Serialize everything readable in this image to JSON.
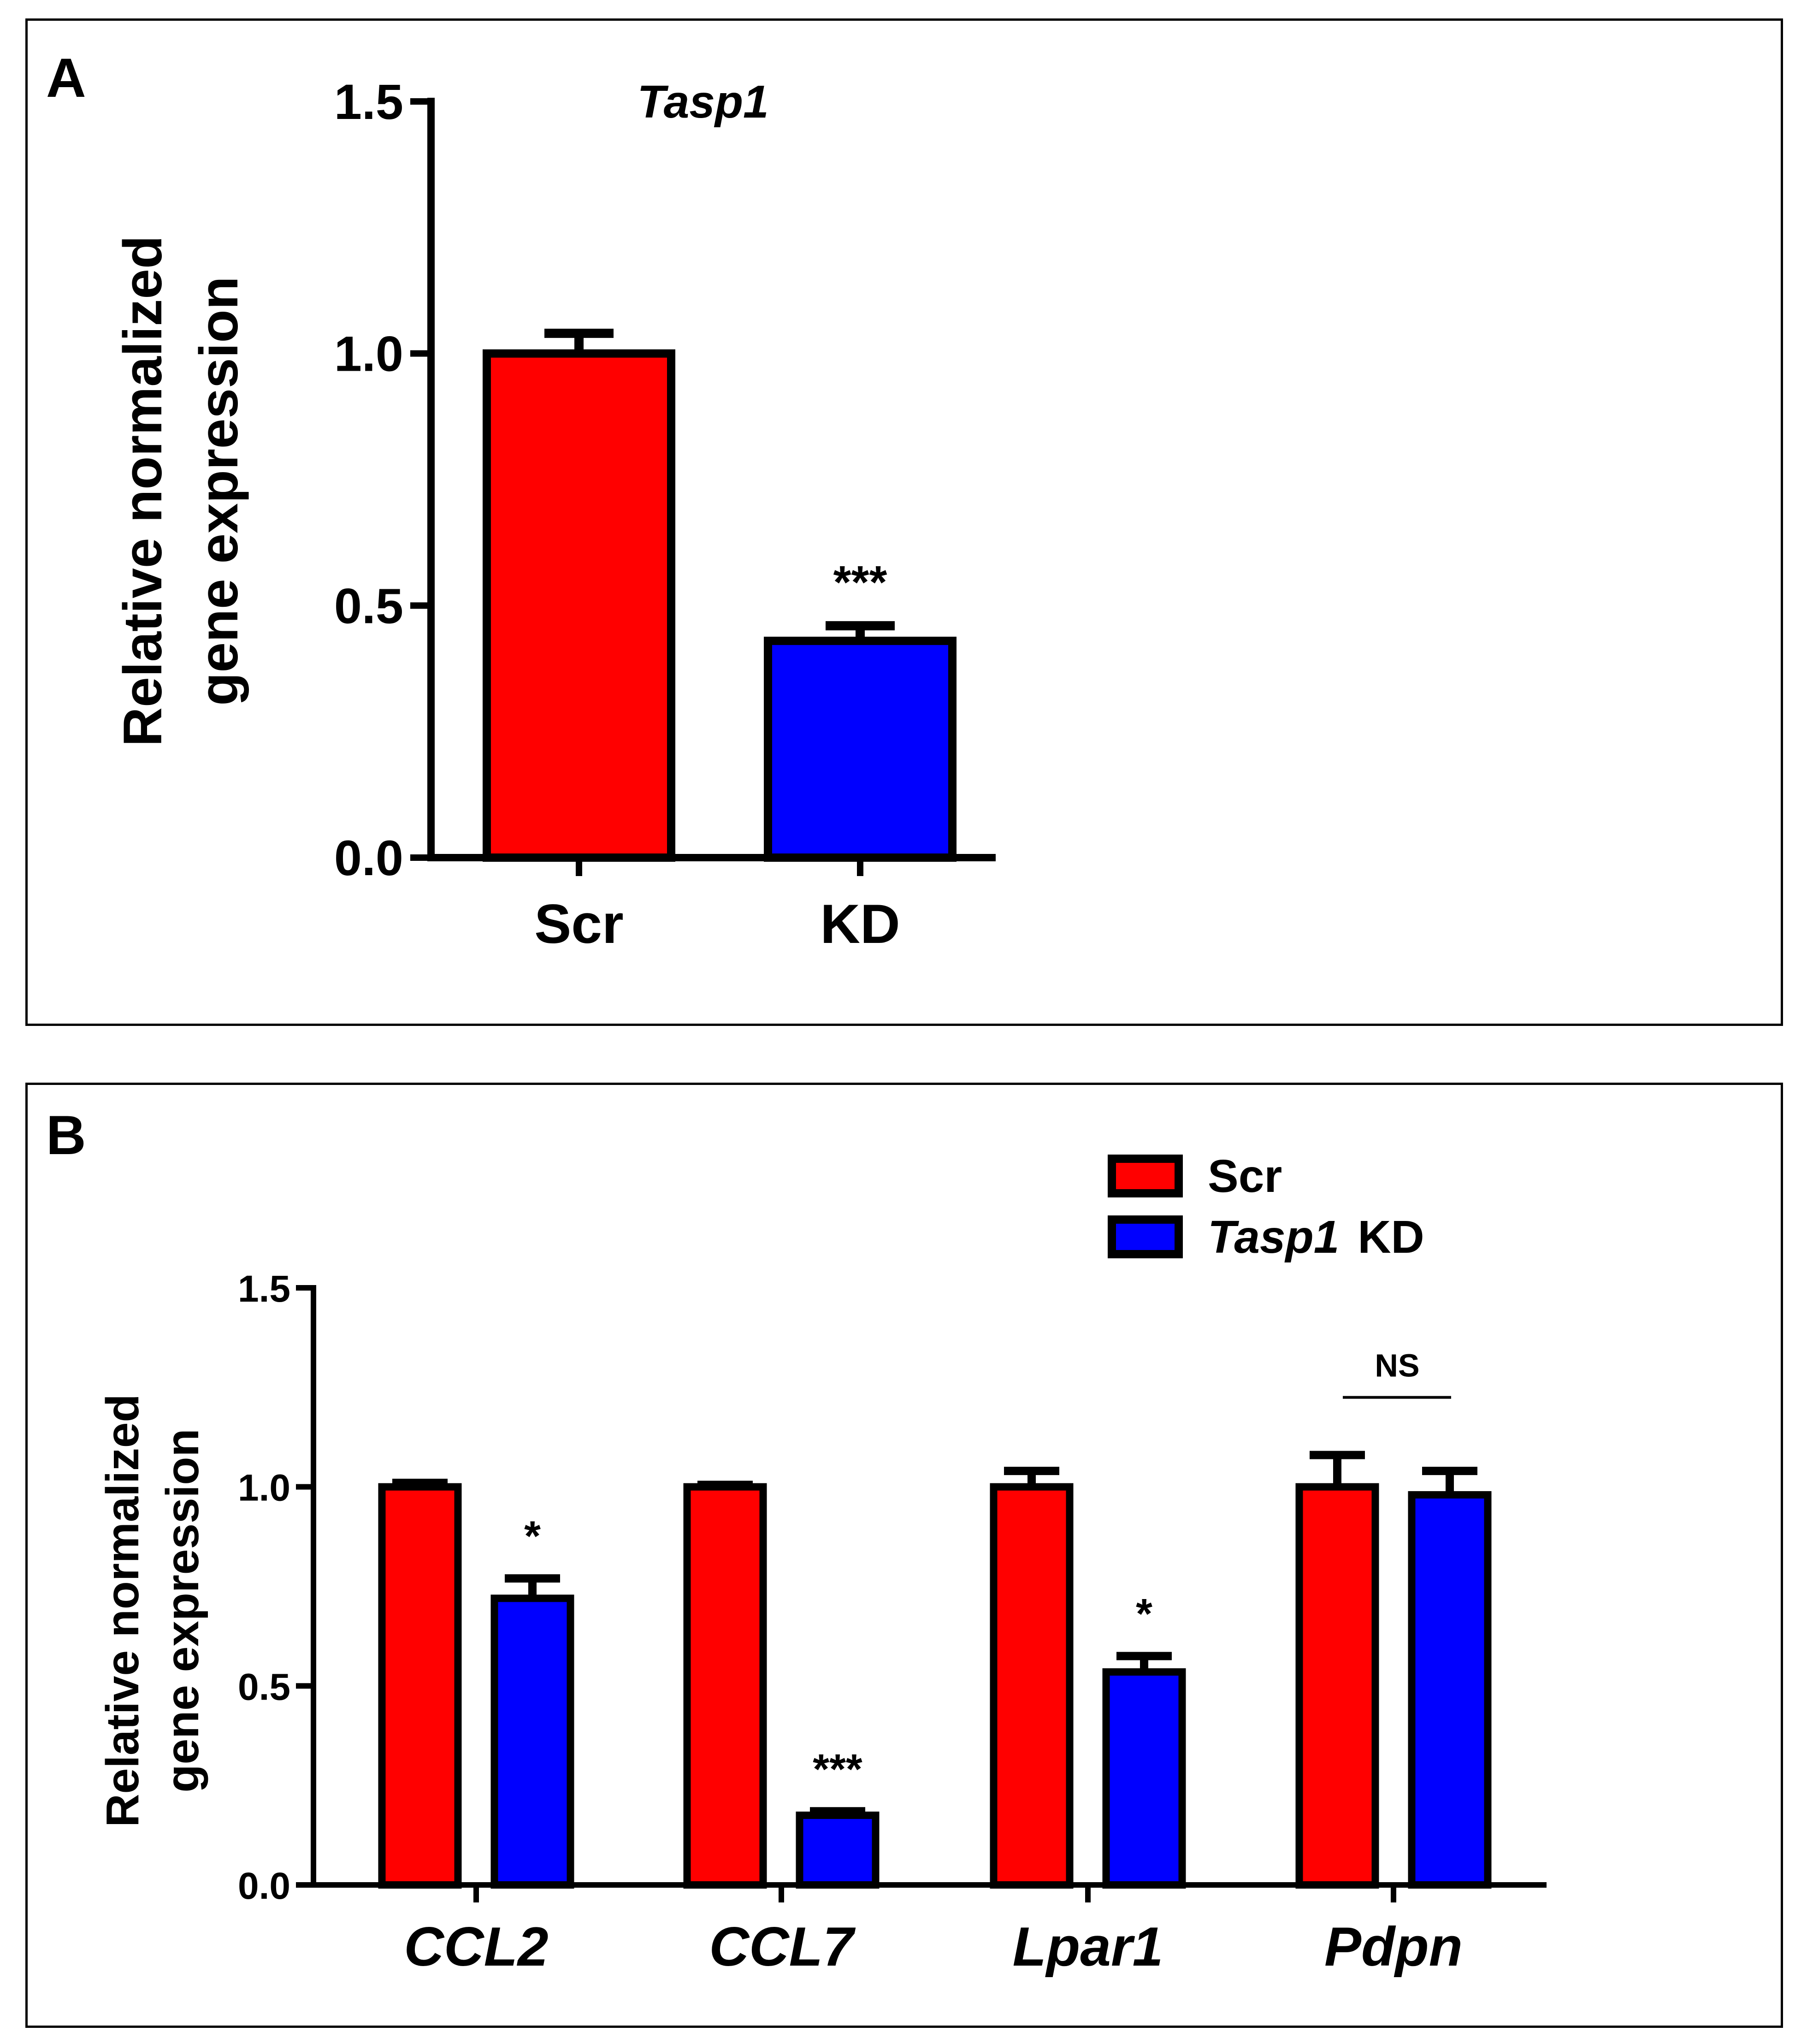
{
  "chart_data": [
    {
      "panel_label": "A",
      "type": "bar",
      "title": "Tasp1",
      "xlabel": "",
      "ylabel_line1": "Relative normalized",
      "ylabel_line2": "gene expression",
      "ylim": [
        0,
        1.5
      ],
      "yticks": [
        "0.0",
        "0.5",
        "1.0",
        "1.5"
      ],
      "categories": [
        "Scr",
        "KD"
      ],
      "values": [
        1.0,
        0.43
      ],
      "errors": [
        0.04,
        0.03
      ],
      "colors": [
        "#ff0000",
        "#0000ff"
      ],
      "significance": [
        "",
        "***"
      ]
    },
    {
      "panel_label": "B",
      "type": "bar",
      "title": "",
      "xlabel": "",
      "ylabel_line1": "Relative normalized",
      "ylabel_line2": "gene expression",
      "ylim": [
        0,
        1.5
      ],
      "yticks": [
        "0.0",
        "0.5",
        "1.0",
        "1.5"
      ],
      "categories": [
        "CCL2",
        "CCL7",
        "Lpar1",
        "Pdpn"
      ],
      "series": [
        {
          "name": "Scr",
          "color": "#ff0000",
          "values": [
            1.0,
            1.0,
            1.0,
            1.0
          ],
          "errors": [
            0.01,
            0.005,
            0.04,
            0.08
          ]
        },
        {
          "name": "Tasp1 KD",
          "name_italic": "Tasp1",
          "name_rest": "KD",
          "color": "#0000ff",
          "values": [
            0.72,
            0.175,
            0.535,
            0.98
          ],
          "errors": [
            0.05,
            0.01,
            0.04,
            0.06
          ]
        }
      ],
      "significance": [
        "*",
        "***",
        "*",
        "NS"
      ],
      "legend_position": "top-right"
    }
  ]
}
